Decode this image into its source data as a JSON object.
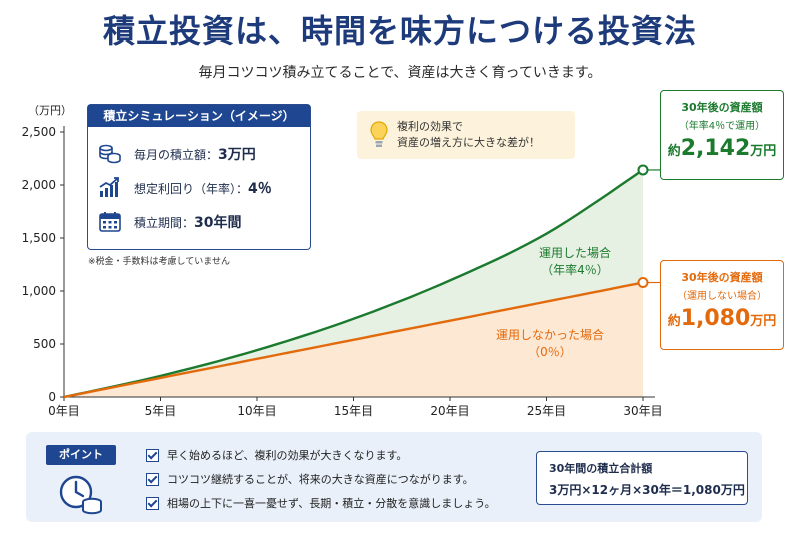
{
  "title": "積立投資は、時間を味方につける投資法",
  "subtitle": "毎月コツコツ積み立てることで、資産は大きく育っていきます。",
  "colors": {
    "navy": "#1f4690",
    "invested": "#1b7a2e",
    "notInvested": "#e36a0c"
  },
  "simulation": {
    "header": "積立シミュレーション（イメージ）",
    "items": [
      {
        "icon": "coins-icon",
        "label": "毎月の積立額：",
        "value": "3万円"
      },
      {
        "icon": "growth-chart-icon",
        "label": "想定利回り（年率）：",
        "value": "4％"
      },
      {
        "icon": "calendar-icon",
        "label": "積立期間：",
        "value": "30年間"
      }
    ],
    "note": "※税金・手数料は考慮していません"
  },
  "hint": {
    "icon": "lightbulb-icon",
    "line1": "複利の効果で",
    "line2": "資産の増え方に大きな差が！"
  },
  "callouts": {
    "invested": {
      "line1": "30年後の資産額",
      "line2": "（年率4％で運用）",
      "prefix": "約",
      "amount": "2,142",
      "unit": "万円"
    },
    "notInvested": {
      "line1": "30年後の資産額",
      "line2": "（運用しない場合）",
      "prefix": "約",
      "amount": "1,080",
      "unit": "万円"
    }
  },
  "chart_data": {
    "type": "area",
    "ylabel": "（万円）",
    "ylim": [
      0,
      2500
    ],
    "xlim": [
      0,
      30
    ],
    "yticks": [
      0,
      500,
      1000,
      1500,
      2000,
      2500
    ],
    "ytick_labels": [
      "0",
      "500",
      "1,000",
      "1,500",
      "2,000",
      "2,500"
    ],
    "xticks": [
      0,
      5,
      10,
      15,
      20,
      25,
      30
    ],
    "xtick_labels": [
      "0年目",
      "5年目",
      "10年目",
      "15年目",
      "20年目",
      "25年目",
      "30年目"
    ],
    "x": [
      0,
      5,
      10,
      15,
      20,
      25,
      30
    ],
    "series": [
      {
        "name": "運用した場合",
        "name2": "（年率4％）",
        "values": [
          0,
          199,
          442,
          738,
          1100,
          1541,
          2142
        ]
      },
      {
        "name": "運用しなかった場合",
        "name2": "（0％）",
        "values": [
          0,
          180,
          360,
          540,
          720,
          900,
          1080
        ]
      }
    ],
    "grid": false,
    "legend": "inline"
  },
  "points": {
    "badge": "ポイント",
    "icon": "clock-coins-icon",
    "items": [
      "早く始めるほど、複利の効果が大きくなります。",
      "コツコツ継続することが、将来の大きな資産につながります。",
      "相場の上下に一喜一憂せず、長期・積立・分散を意識しましょう。"
    ],
    "total": {
      "label": "30年間の積立合計額",
      "formula": "3万円×12ヶ月×30年＝1,080万円"
    }
  }
}
